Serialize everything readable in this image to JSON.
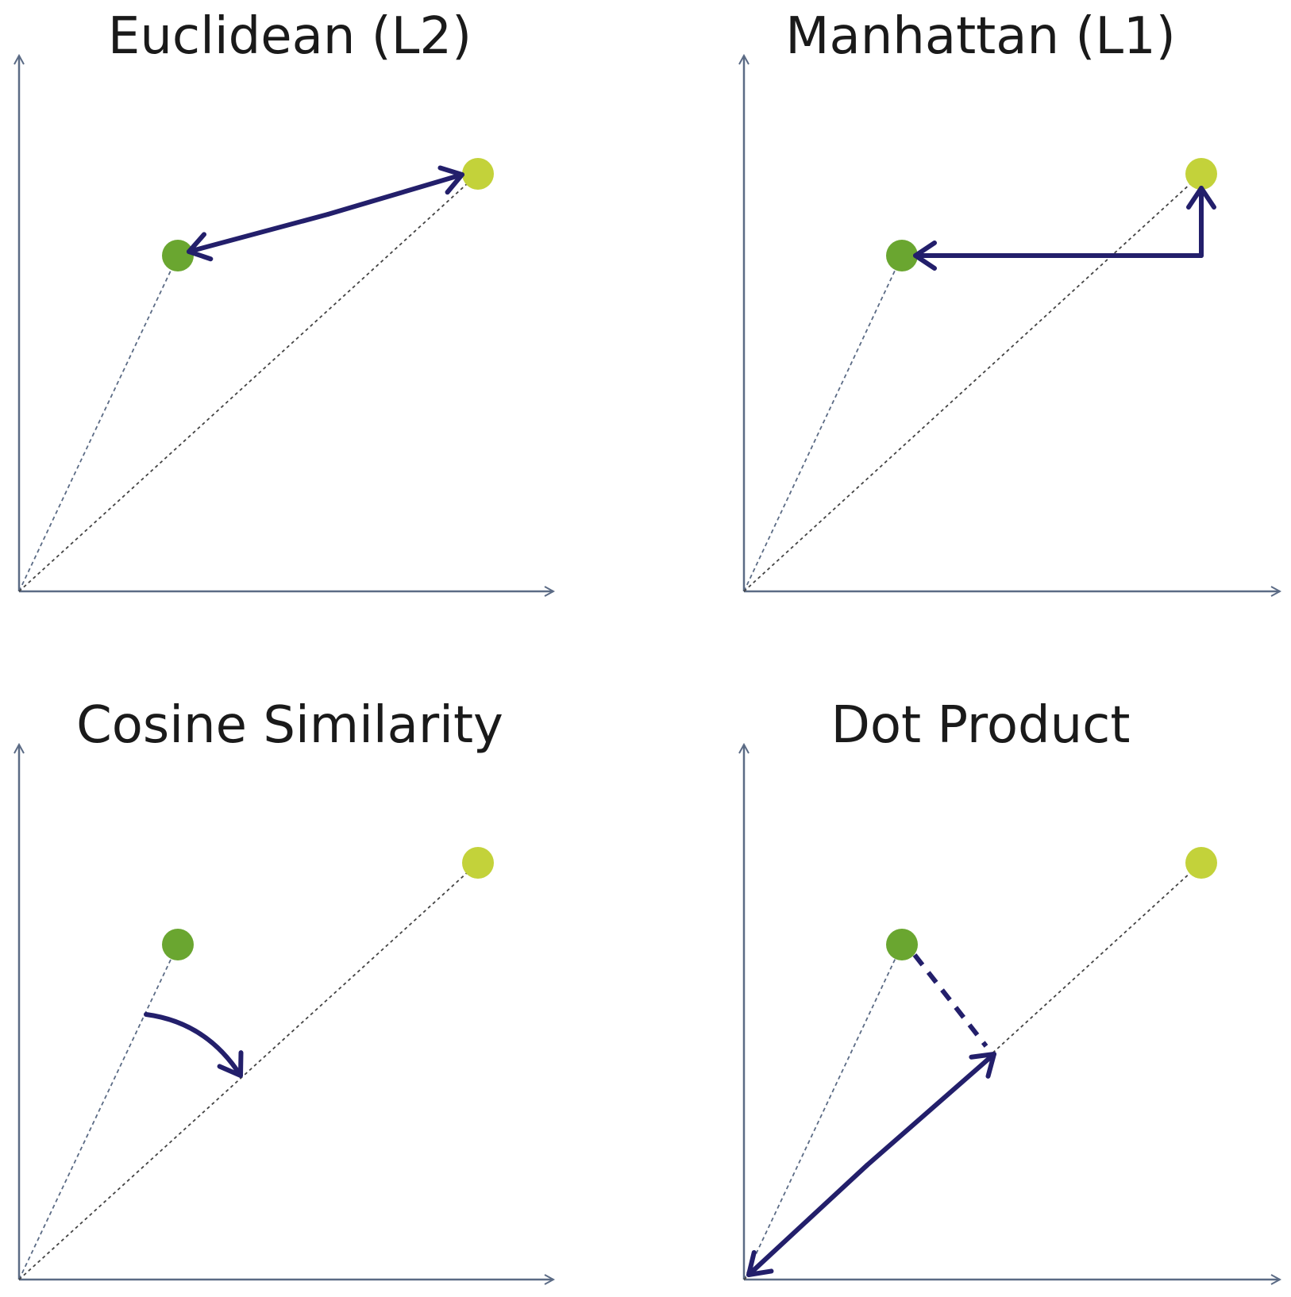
{
  "panels": [
    {
      "id": "euclidean",
      "title": "Euclidean (L2)"
    },
    {
      "id": "manhattan",
      "title": "Manhattan (L1)"
    },
    {
      "id": "cosine",
      "title": "Cosine Similarity"
    },
    {
      "id": "dot",
      "title": "Dot Product"
    }
  ],
  "colors": {
    "axis": "#5b6b85",
    "arrow": "#231f6b",
    "point_a": "#6aa630",
    "point_b": "#c3d23a",
    "guide": "#444444"
  }
}
